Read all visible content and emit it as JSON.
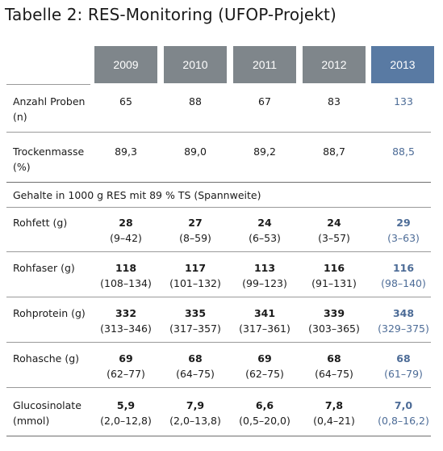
{
  "title": "Tabelle 2: RES-Monitoring (UFOP-Projekt)",
  "years": [
    "2009",
    "2010",
    "2011",
    "2012",
    "2013"
  ],
  "rows_basic": [
    {
      "label_lines": [
        "Anzahl Proben",
        "(n)"
      ],
      "values": [
        "65",
        "88",
        "67",
        "83",
        "133"
      ]
    },
    {
      "label_lines": [
        "Trockenmasse",
        "(%)"
      ],
      "values": [
        "89,3",
        "89,0",
        "89,2",
        "88,7",
        "88,5"
      ]
    }
  ],
  "section_note": "Gehalte in 1000 g RES mit 89 % TS (Spannweite)",
  "rows_detail": [
    {
      "label_lines": [
        "Rohfett (g)"
      ],
      "values": [
        "28",
        "27",
        "24",
        "24",
        "29"
      ],
      "ranges": [
        "(9–42)",
        "(8–59)",
        "(6–53)",
        "(3–57)",
        "(3–63)"
      ]
    },
    {
      "label_lines": [
        "Rohfaser (g)"
      ],
      "values": [
        "118",
        "117",
        "113",
        "116",
        "116"
      ],
      "ranges": [
        "(108–134)",
        "(101–132)",
        "(99–123)",
        "(91–131)",
        "(98–140)"
      ]
    },
    {
      "label_lines": [
        "Rohprotein (g)"
      ],
      "values": [
        "332",
        "335",
        "341",
        "339",
        "348"
      ],
      "ranges": [
        "(313–346)",
        "(317–357)",
        "(317–361)",
        "(303–365)",
        "(329–375)"
      ]
    },
    {
      "label_lines": [
        "Rohasche (g)"
      ],
      "values": [
        "69",
        "68",
        "69",
        "68",
        "68"
      ],
      "ranges": [
        "(62–77)",
        "(64–75)",
        "(62–75)",
        "(64–75)",
        "(61–79)"
      ]
    },
    {
      "label_lines": [
        "Glucosinolate",
        "(mmol)"
      ],
      "values": [
        "5,9",
        "7,9",
        "6,6",
        "7,8",
        "7,0"
      ],
      "ranges": [
        "(2,0–12,8)",
        "(2,0–13,8)",
        "(0,5–20,0)",
        "(0,4–21)",
        "(0,8–16,2)"
      ]
    }
  ],
  "colors": {
    "header_gray": "#7f868b",
    "header_highlight": "#597aa3",
    "highlight_text": "#4d6c97"
  }
}
